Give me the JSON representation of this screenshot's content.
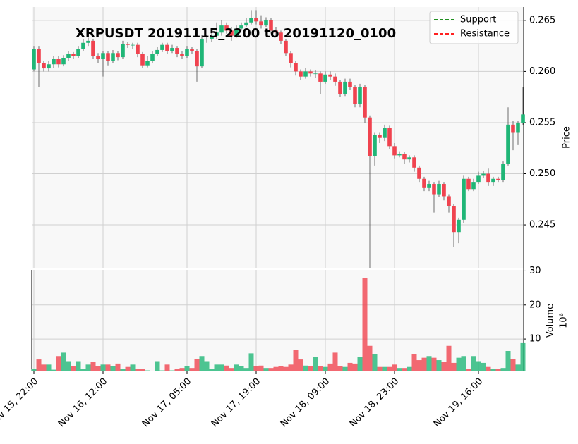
{
  "chart_data": {
    "type": "candlestick",
    "title": "XRPUSDT 20191115_2200 to 20191120_0100",
    "y_label": "Price",
    "y2_label": "Volume",
    "y2_multiplier": "10⁶",
    "up_color": "#20b677",
    "down_color": "#f0434f",
    "legend": [
      {
        "name": "Support",
        "color": "#008000"
      },
      {
        "name": "Resistance",
        "color": "#ff0000"
      }
    ],
    "legend_position": "upper right",
    "grid": true,
    "xticks": [
      {
        "value": 0,
        "label": "Nov 15, 22:00"
      },
      {
        "value": 14,
        "label": "Nov 16, 12:00"
      },
      {
        "value": 31,
        "label": "Nov 17, 05:00"
      },
      {
        "value": 45,
        "label": "Nov 17, 19:00"
      },
      {
        "value": 59,
        "label": "Nov 18, 09:00"
      },
      {
        "value": 73,
        "label": "Nov 18, 23:00"
      },
      {
        "value": 90,
        "label": "Nov 19, 16:00"
      }
    ],
    "ylim": [
      0.2408,
      0.2663
    ],
    "yticks": [
      0.245,
      {
        "value": 0.25,
        "label": "0.250"
      },
      0.255,
      {
        "value": 0.26,
        "label": "0.260"
      },
      0.265
    ],
    "y2lim": [
      0.5,
      30.3
    ],
    "y2ticks": [
      10,
      20,
      30
    ],
    "open": [
      0.2602,
      0.2622,
      0.2608,
      0.2603,
      0.2607,
      0.2612,
      0.2607,
      0.2613,
      0.2617,
      0.2615,
      0.2622,
      0.2628,
      0.263,
      0.2615,
      0.2612,
      0.2618,
      0.261,
      0.2618,
      0.2614,
      0.2627,
      0.2626,
      0.2626,
      0.2617,
      0.2606,
      0.261,
      0.2617,
      0.2621,
      0.2626,
      0.262,
      0.2623,
      0.2617,
      0.2615,
      0.2622,
      0.262,
      0.2605,
      0.2632,
      0.2632,
      0.2635,
      0.2638,
      0.2645,
      0.264,
      0.2635,
      0.2642,
      0.2645,
      0.2648,
      0.2652,
      0.2649,
      0.2645,
      0.265,
      0.264,
      0.2638,
      0.263,
      0.2618,
      0.2608,
      0.26,
      0.2595,
      0.26,
      0.2598,
      0.2598,
      0.259,
      0.2597,
      0.2595,
      0.259,
      0.2578,
      0.259,
      0.2585,
      0.2568,
      0.2585,
      0.2555,
      0.2517,
      0.2538,
      0.2535,
      0.2545,
      0.2527,
      0.2518,
      0.2519,
      0.2514,
      0.2516,
      0.2506,
      0.2495,
      0.2486,
      0.249,
      0.248,
      0.249,
      0.2478,
      0.2468,
      0.2443,
      0.2455,
      0.2495,
      0.2485,
      0.2492,
      0.2498,
      0.25,
      0.2492,
      0.2495,
      0.2494,
      0.251,
      0.2548,
      0.254,
      0.255
    ],
    "high": [
      0.2625,
      0.2625,
      0.261,
      0.261,
      0.2615,
      0.2615,
      0.2616,
      0.262,
      0.2619,
      0.2625,
      0.2632,
      0.2633,
      0.2632,
      0.2618,
      0.262,
      0.262,
      0.2621,
      0.262,
      0.263,
      0.2629,
      0.2628,
      0.2628,
      0.2619,
      0.2615,
      0.262,
      0.2624,
      0.2628,
      0.2628,
      0.2626,
      0.2625,
      0.262,
      0.2625,
      0.2624,
      0.2622,
      0.2636,
      0.2636,
      0.264,
      0.2648,
      0.265,
      0.2648,
      0.2643,
      0.2645,
      0.2648,
      0.2652,
      0.266,
      0.266,
      0.2655,
      0.2653,
      0.2652,
      0.2643,
      0.264,
      0.2632,
      0.262,
      0.261,
      0.2602,
      0.2603,
      0.2602,
      0.2601,
      0.26,
      0.26,
      0.26,
      0.2598,
      0.2592,
      0.2593,
      0.2593,
      0.2587,
      0.2588,
      0.2587,
      0.2557,
      0.254,
      0.254,
      0.2548,
      0.2547,
      0.253,
      0.2522,
      0.2521,
      0.2518,
      0.2518,
      0.2508,
      0.2497,
      0.2493,
      0.2492,
      0.2493,
      0.2492,
      0.248,
      0.247,
      0.2457,
      0.2498,
      0.2497,
      0.2495,
      0.2502,
      0.2503,
      0.2505,
      0.2497,
      0.2497,
      0.2512,
      0.2565,
      0.2552,
      0.2552,
      0.2585
    ],
    "low": [
      0.26,
      0.2585,
      0.26,
      0.26,
      0.2603,
      0.2604,
      0.2605,
      0.261,
      0.2612,
      0.2613,
      0.262,
      0.2625,
      0.2612,
      0.2608,
      0.2595,
      0.2606,
      0.2608,
      0.2611,
      0.2612,
      0.2623,
      0.2622,
      0.2614,
      0.2603,
      0.2604,
      0.2608,
      0.2615,
      0.2619,
      0.2617,
      0.2618,
      0.2614,
      0.2612,
      0.2613,
      0.2617,
      0.259,
      0.2603,
      0.2628,
      0.2629,
      0.2632,
      0.2635,
      0.2637,
      0.263,
      0.2633,
      0.264,
      0.2643,
      0.2646,
      0.2646,
      0.2642,
      0.2643,
      0.2637,
      0.2634,
      0.2627,
      0.2615,
      0.2604,
      0.2596,
      0.2592,
      0.2593,
      0.2595,
      0.2594,
      0.2578,
      0.2588,
      0.2592,
      0.2586,
      0.2575,
      0.2576,
      0.2582,
      0.2565,
      0.2565,
      0.255,
      0.2408,
      0.2508,
      0.253,
      0.2532,
      0.2524,
      0.2515,
      0.2516,
      0.251,
      0.2511,
      0.2502,
      0.2492,
      0.2483,
      0.2483,
      0.2462,
      0.2477,
      0.2474,
      0.2462,
      0.2428,
      0.2432,
      0.2452,
      0.2483,
      0.2483,
      0.249,
      0.2496,
      0.2488,
      0.2488,
      0.2492,
      0.2492,
      0.2508,
      0.2523,
      0.2528,
      0.2548
    ],
    "close": [
      0.2622,
      0.2608,
      0.2603,
      0.2607,
      0.2612,
      0.2607,
      0.2613,
      0.2617,
      0.2615,
      0.2622,
      0.2628,
      0.263,
      0.2615,
      0.2612,
      0.2618,
      0.261,
      0.2618,
      0.2614,
      0.2627,
      0.2626,
      0.2626,
      0.2617,
      0.2606,
      0.261,
      0.2617,
      0.2621,
      0.2626,
      0.262,
      0.2623,
      0.2617,
      0.2615,
      0.2622,
      0.262,
      0.2605,
      0.2632,
      0.2632,
      0.2635,
      0.2638,
      0.2645,
      0.264,
      0.2635,
      0.2642,
      0.2645,
      0.2648,
      0.2652,
      0.2649,
      0.2645,
      0.265,
      0.264,
      0.2638,
      0.263,
      0.2618,
      0.2608,
      0.26,
      0.2595,
      0.26,
      0.2598,
      0.2598,
      0.259,
      0.2597,
      0.2595,
      0.259,
      0.2578,
      0.259,
      0.2585,
      0.2568,
      0.2585,
      0.2555,
      0.2517,
      0.2538,
      0.2535,
      0.2545,
      0.2527,
      0.2518,
      0.2519,
      0.2514,
      0.2516,
      0.2506,
      0.2495,
      0.2486,
      0.249,
      0.248,
      0.249,
      0.2478,
      0.2468,
      0.2443,
      0.2455,
      0.2495,
      0.2485,
      0.2492,
      0.2498,
      0.25,
      0.2492,
      0.2495,
      0.2494,
      0.251,
      0.2548,
      0.254,
      0.255,
      0.2558
    ],
    "volume": [
      1.2,
      4,
      2.5,
      2.5,
      1,
      5,
      6,
      3.5,
      2,
      3.5,
      1.2,
      2.5,
      3.2,
      2,
      2.5,
      2.5,
      2,
      2.8,
      1.2,
      1.8,
      2.5,
      1.2,
      1.2,
      0.8,
      0.6,
      3.5,
      0.8,
      2.5,
      0.8,
      1.2,
      1.5,
      2,
      1.5,
      4.2,
      5,
      3.5,
      1.2,
      2.5,
      2.5,
      2.2,
      1.5,
      2.5,
      2,
      1.5,
      5.8,
      2,
      2.2,
      1.5,
      1.5,
      1.8,
      2,
      1.8,
      2.5,
      6.8,
      4,
      2.2,
      2,
      4.8,
      2,
      1.8,
      2.8,
      6,
      2,
      1.8,
      3,
      2.8,
      4.8,
      28,
      8,
      5.5,
      1.8,
      1.8,
      1.8,
      2.5,
      1.5,
      1.5,
      1.8,
      5.5,
      3.8,
      4.5,
      5,
      4.5,
      3.8,
      3.2,
      8,
      3,
      4.5,
      5,
      1.2,
      5,
      3.5,
      3,
      1.8,
      1.2,
      1.2,
      1.5,
      6.5,
      4.2,
      2.5,
      9
    ]
  }
}
